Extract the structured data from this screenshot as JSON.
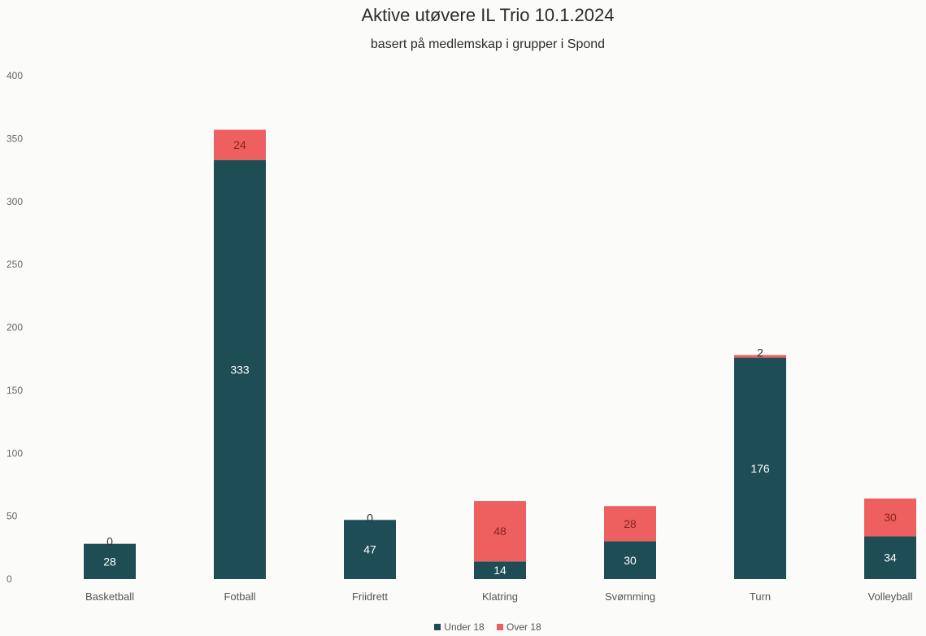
{
  "chart_data": {
    "type": "bar",
    "stacked": true,
    "title": "Aktive utøvere IL Trio 10.1.2024",
    "subtitle": "basert på medlemskap i grupper i Spond",
    "categories": [
      "Basketball",
      "Fotball",
      "Friidrett",
      "Klatring",
      "Svømming",
      "Turn",
      "Volleyball"
    ],
    "series": [
      {
        "name": "Under 18",
        "color": "#1e4d55",
        "values": [
          28,
          333,
          47,
          14,
          30,
          176,
          34
        ]
      },
      {
        "name": "Over 18",
        "color": "#ee6060",
        "values": [
          0,
          24,
          0,
          48,
          28,
          2,
          30
        ]
      }
    ],
    "ylim": [
      0,
      400
    ],
    "yticks": [
      0,
      50,
      100,
      150,
      200,
      250,
      300,
      350,
      400
    ],
    "grid": false,
    "legend_position": "bottom"
  }
}
